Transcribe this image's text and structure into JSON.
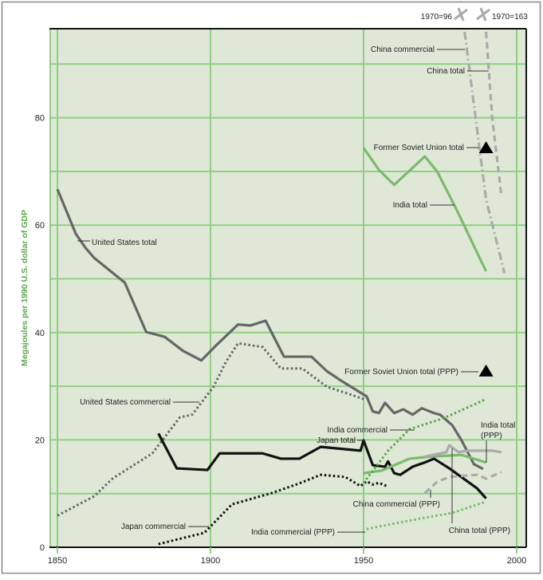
{
  "chart_data": {
    "type": "line",
    "title": "",
    "xlabel": "",
    "ylabel": "Megajoules per 1990 U.S. dollar of GDP",
    "xlim": [
      1850,
      2000
    ],
    "ylim": [
      0,
      96
    ],
    "xticks": [
      "1850",
      "1900",
      "1950",
      "2000"
    ],
    "xtick_values": [
      1850,
      1900,
      1950,
      2000
    ],
    "yticks": [
      "0",
      "20",
      "40",
      "60",
      "80"
    ],
    "ytick_values": [
      0,
      20,
      40,
      60,
      80
    ],
    "grid": true,
    "colors": {
      "background": "#dfe8d7",
      "grid": "#8fd080",
      "us": "#666666",
      "japan": "#111111",
      "india": "#7bba6c",
      "china": "#aaaaaa",
      "ylabel": "#5aa64a"
    },
    "series": [
      {
        "name": "United States total",
        "style": "solid",
        "color": "#666666",
        "x": [
          1850,
          1856,
          1859,
          1862,
          1872,
          1879,
          1885,
          1891,
          1897,
          1902,
          1909,
          1913,
          1918,
          1924,
          1933,
          1938,
          1943,
          1951,
          1953,
          1955,
          1957,
          1960,
          1963,
          1966,
          1969,
          1973,
          1975,
          1979,
          1982,
          1986,
          1989
        ],
        "y": [
          66.7,
          58.4,
          55.9,
          53.9,
          49.3,
          40.1,
          39.2,
          36.6,
          34.8,
          37.7,
          41.5,
          41.3,
          42.2,
          35.5,
          35.5,
          32.8,
          30.9,
          28.1,
          25.3,
          25.0,
          26.9,
          25.0,
          25.7,
          24.7,
          25.9,
          25.0,
          24.7,
          22.7,
          19.9,
          15.5,
          14.6
        ]
      },
      {
        "name": "United States commercial",
        "style": "dotted",
        "color": "#666666",
        "x": [
          1850,
          1862,
          1868,
          1881,
          1890,
          1894,
          1901,
          1905,
          1909,
          1917,
          1923,
          1930,
          1938,
          1946,
          1950
        ],
        "y": [
          5.9,
          9.5,
          12.8,
          17.5,
          24.2,
          24.7,
          29.9,
          34.5,
          38.0,
          37.3,
          33.3,
          33.3,
          29.9,
          28.4,
          27.6
        ]
      },
      {
        "name": "Japan total",
        "style": "solid",
        "color": "#111111",
        "x": [
          1883,
          1889,
          1899,
          1903,
          1917,
          1923,
          1929,
          1936,
          1949,
          1950,
          1953,
          1957,
          1958,
          1960,
          1962,
          1966,
          1970,
          1973,
          1978,
          1987,
          1990
        ],
        "y": [
          21.2,
          14.7,
          14.4,
          17.5,
          17.5,
          16.5,
          16.5,
          18.7,
          18.0,
          19.9,
          15.3,
          15.0,
          16.0,
          13.8,
          13.5,
          15.0,
          15.8,
          16.5,
          14.7,
          11.0,
          9.1
        ]
      },
      {
        "name": "Japan commercial",
        "style": "dotted",
        "color": "#111111",
        "x": [
          1883,
          1898,
          1907,
          1920,
          1929,
          1936,
          1944,
          1949,
          1951,
          1953,
          1955,
          1958
        ],
        "y": [
          0.6,
          2.7,
          8.0,
          10.1,
          11.9,
          13.5,
          13.1,
          11.4,
          12.3,
          11.7,
          12.0,
          11.3
        ]
      },
      {
        "name": "India total",
        "style": "solid",
        "color": "#7bba6c",
        "x": [
          1950,
          1955,
          1960,
          1970,
          1974,
          1980,
          1990
        ],
        "y": [
          74.4,
          70.3,
          67.5,
          72.8,
          70.0,
          63.3,
          51.4
        ]
      },
      {
        "name": "India total (PPP)",
        "style": "solid",
        "color": "#7bba6c",
        "x": [
          1950,
          1956,
          1965,
          1972,
          1982,
          1990
        ],
        "y": [
          13.8,
          14.3,
          16.5,
          16.9,
          17.2,
          15.8
        ]
      },
      {
        "name": "India commercial",
        "style": "dotted",
        "color": "#5aa64a",
        "x": [
          1950,
          1958,
          1965,
          1976,
          1990
        ],
        "y": [
          12.0,
          18.0,
          22.0,
          24.0,
          27.6
        ]
      },
      {
        "name": "India commercial (PPP)",
        "style": "dotted",
        "color": "#7bba6c",
        "x": [
          1951,
          1958,
          1968,
          1979,
          1990
        ],
        "y": [
          3.4,
          4.2,
          5.3,
          6.4,
          8.5
        ]
      },
      {
        "name": "China total (PPP)",
        "style": "solid",
        "color": "#aaaaaa",
        "x": [
          1970,
          1977,
          1978,
          1981,
          1984,
          1992,
          1995
        ],
        "y": [
          16.9,
          17.7,
          19.0,
          17.7,
          18.0,
          18.0,
          17.7
        ]
      },
      {
        "name": "China commercial (PPP)",
        "style": "dashed",
        "color": "#aaaaaa",
        "x": [
          1970,
          1974,
          1978,
          1987,
          1990,
          1995
        ],
        "y": [
          10.1,
          12.2,
          13.1,
          13.5,
          12.8,
          14.0
        ]
      },
      {
        "name": "China commercial",
        "style": "dashdot",
        "color": "#aaaaaa",
        "x": [
          1983,
          1986,
          1990,
          1996
        ],
        "y": [
          96,
          82.6,
          64.8,
          51.1
        ]
      },
      {
        "name": "China total",
        "style": "dashed",
        "color": "#aaaaaa",
        "x": [
          1990,
          1992,
          1995
        ],
        "y": [
          96,
          80,
          65.5
        ]
      },
      {
        "name": "Former Soviet Union total",
        "style": "marker-triangle",
        "color": "#000000",
        "x": [
          1990
        ],
        "y": [
          74.3
        ]
      },
      {
        "name": "Former Soviet Union total (PPP)",
        "style": "marker-triangle",
        "color": "#000000",
        "x": [
          1990
        ],
        "y": [
          32.7
        ]
      }
    ],
    "annotations": [
      "United States total",
      "United States commercial",
      "Japan total",
      "Japan commercial",
      "India commercial",
      "India total",
      "(PPP)",
      "China commercial (PPP)",
      "China total (PPP)",
      "India commercial (PPP)",
      "Former Soviet Union total (PPP)",
      "Former Soviet Union total",
      "India total",
      "China commercial",
      "China total",
      "1970=96",
      "1970=163"
    ]
  }
}
